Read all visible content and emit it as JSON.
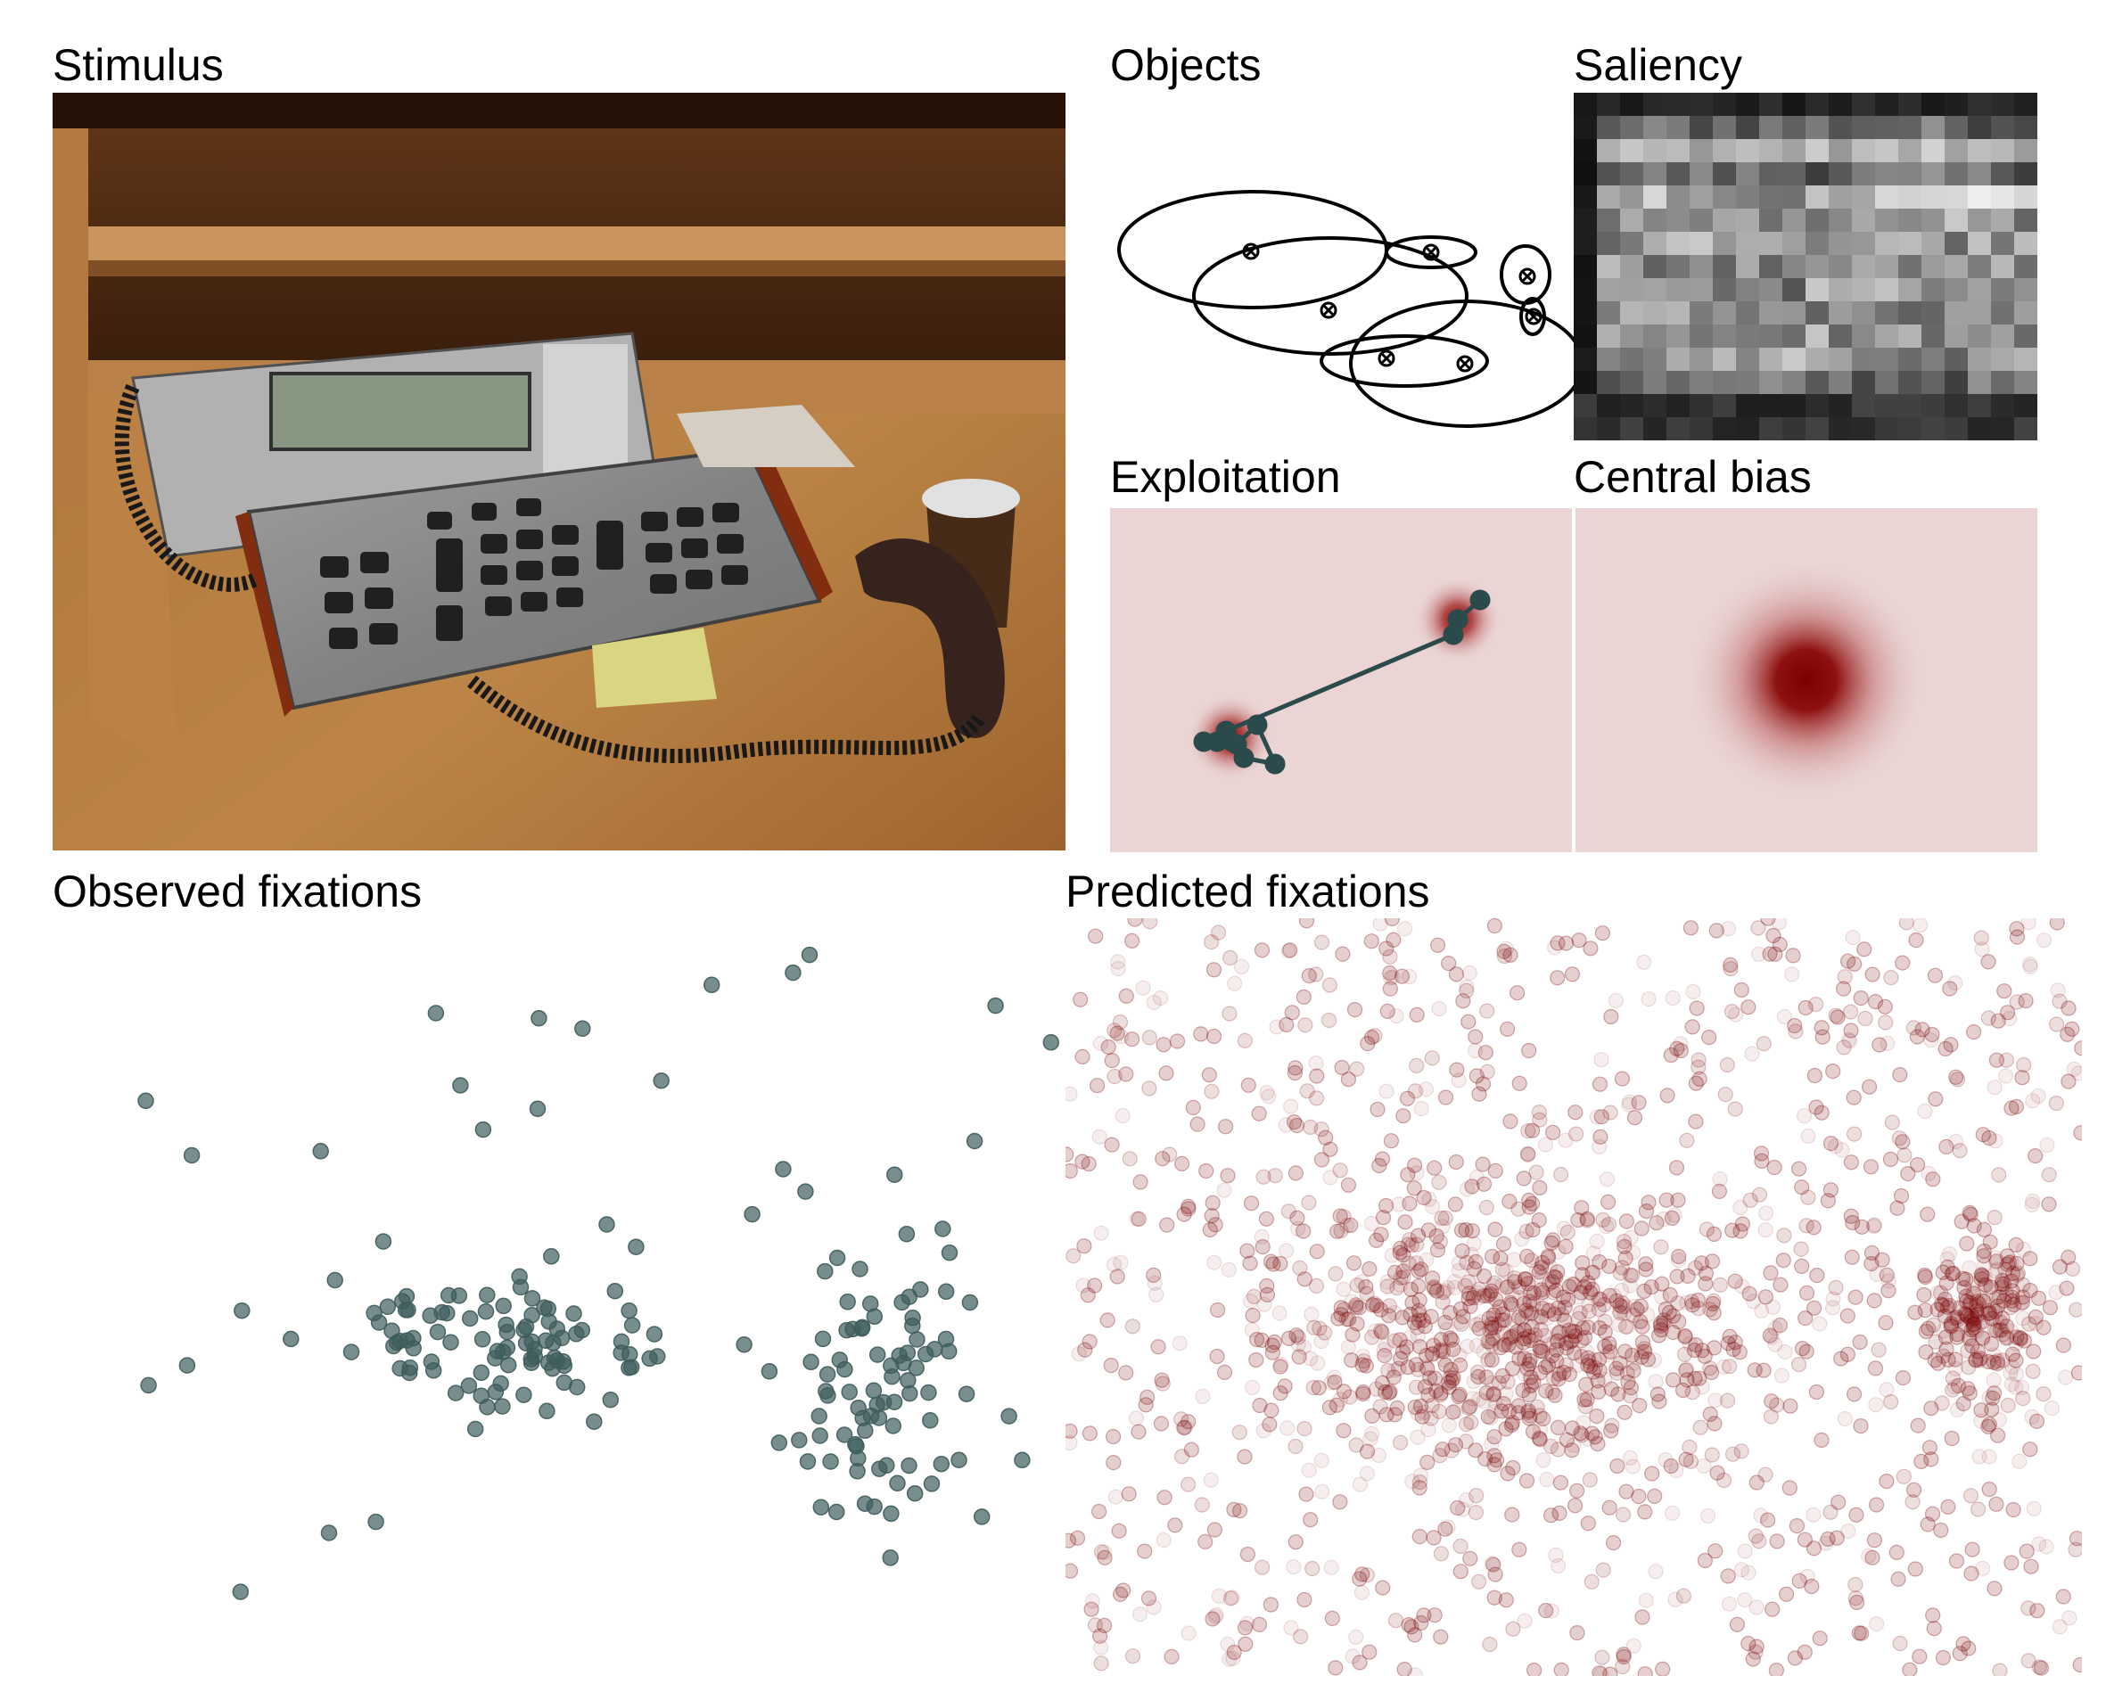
{
  "labels": {
    "stimulus": "Stimulus",
    "objects": "Objects",
    "saliency": "Saliency",
    "exploitation": "Exploitation",
    "central_bias": "Central bias",
    "observed": "Observed fixations",
    "predicted": "Predicted fixations"
  },
  "colors": {
    "fixation": "#3f5c5c",
    "scanpath": "#2a4a4c",
    "prediction": "#7a0a0a",
    "map_background": "#ead4d4",
    "map_peak": "#7a0000"
  },
  "icons": {
    "object_center": "crossed-circle-icon"
  }
}
